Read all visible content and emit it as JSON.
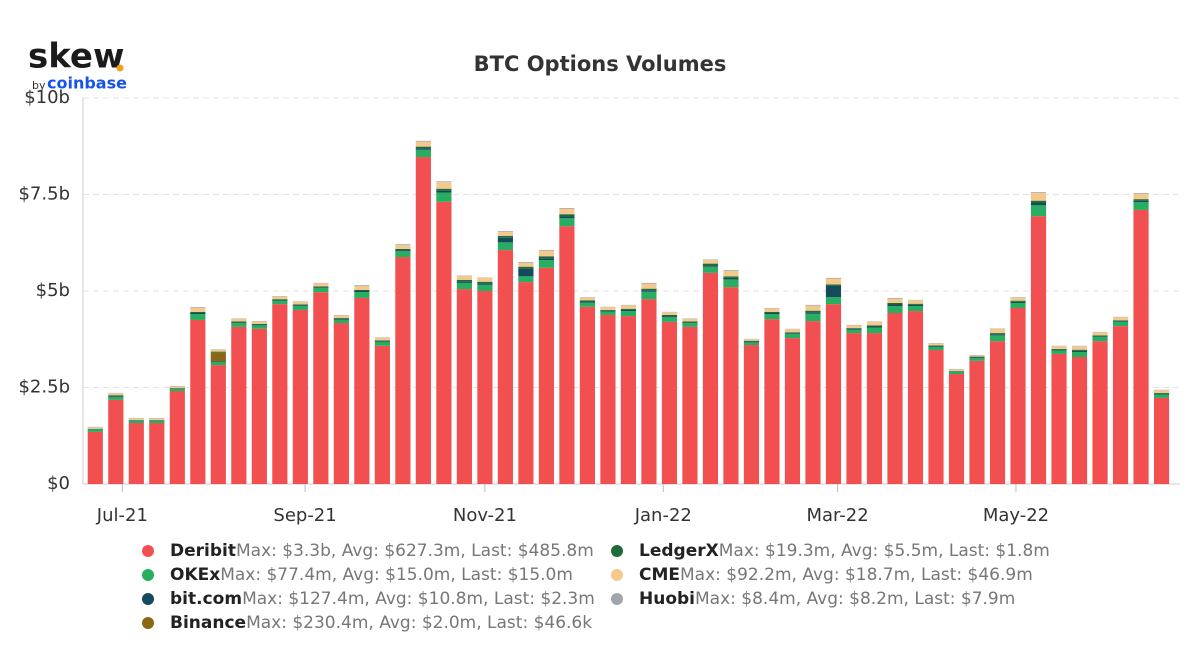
{
  "logo": {
    "name": "skew",
    "by": "by",
    "brand": "coinbase"
  },
  "chart_data": {
    "type": "stacked_bar",
    "title": "BTC Options Volumes",
    "x": [
      0,
      1,
      2,
      3,
      4,
      5,
      6,
      7,
      8,
      9,
      10,
      11,
      12,
      13,
      14,
      15,
      16,
      17,
      18,
      19,
      20,
      21,
      22,
      23,
      24,
      25,
      26,
      27,
      28,
      29,
      30,
      31,
      32,
      33,
      34,
      35,
      36,
      37,
      38,
      39,
      40,
      41,
      42,
      43,
      44,
      45,
      46,
      47,
      48,
      49,
      50,
      51,
      52
    ],
    "xlim": [
      -0.6,
      52.9
    ],
    "xticks": [
      {
        "value": 1.32,
        "label": "Jul-21"
      },
      {
        "value": 10.23,
        "label": "Sep-21"
      },
      {
        "value": 19.0,
        "label": "Nov-21"
      },
      {
        "value": 27.7,
        "label": "Jan-22"
      },
      {
        "value": 36.2,
        "label": "Mar-22"
      },
      {
        "value": 44.9,
        "label": "May-22"
      }
    ],
    "ylim": [
      0,
      10
    ],
    "yticks": [
      {
        "value": 0,
        "label": "$0"
      },
      {
        "value": 2.5,
        "label": "$2.5b"
      },
      {
        "value": 5,
        "label": "$5b"
      },
      {
        "value": 7.5,
        "label": "$7.5b"
      },
      {
        "value": 10,
        "label": "$10b"
      }
    ],
    "grid": true,
    "series": [
      {
        "name": "Deribit",
        "summary": "Max: $3.3b, Avg: $627.3m, Last: $485.8m",
        "color": "#f25050",
        "values": [
          1.35,
          2.18,
          1.58,
          1.58,
          2.41,
          4.25,
          3.08,
          4.07,
          4.02,
          4.66,
          4.51,
          4.97,
          4.17,
          4.82,
          3.58,
          5.88,
          8.47,
          7.31,
          5.05,
          5.0,
          6.06,
          5.23,
          5.6,
          6.68,
          4.59,
          4.38,
          4.35,
          4.79,
          4.2,
          4.07,
          5.47,
          5.1,
          3.6,
          4.27,
          3.78,
          4.22,
          4.66,
          3.91,
          3.91,
          4.43,
          4.48,
          3.47,
          2.85,
          3.19,
          3.7,
          4.56,
          6.94,
          3.37,
          3.29,
          3.7,
          4.09,
          7.1,
          2.23
        ]
      },
      {
        "name": "OKEx",
        "summary": "Max: $77.4m, Avg: $15.0m, Last: $15.0m",
        "color": "#27ae60",
        "values": [
          0.06,
          0.08,
          0.06,
          0.06,
          0.06,
          0.15,
          0.08,
          0.1,
          0.09,
          0.09,
          0.1,
          0.11,
          0.09,
          0.15,
          0.1,
          0.15,
          0.19,
          0.24,
          0.16,
          0.16,
          0.2,
          0.15,
          0.2,
          0.21,
          0.11,
          0.09,
          0.13,
          0.19,
          0.12,
          0.1,
          0.16,
          0.2,
          0.07,
          0.13,
          0.11,
          0.19,
          0.18,
          0.09,
          0.14,
          0.18,
          0.13,
          0.08,
          0.06,
          0.07,
          0.15,
          0.13,
          0.28,
          0.09,
          0.13,
          0.11,
          0.11,
          0.2,
          0.09
        ]
      },
      {
        "name": "bit.com",
        "summary": "Max: $127.4m, Avg: $10.8m, Last: $2.3m",
        "color": "#134a5c",
        "values": [
          0.01,
          0.02,
          0.01,
          0.01,
          0.01,
          0.03,
          0.02,
          0.02,
          0.02,
          0.02,
          0.02,
          0.02,
          0.02,
          0.03,
          0.02,
          0.03,
          0.04,
          0.05,
          0.04,
          0.04,
          0.12,
          0.2,
          0.05,
          0.05,
          0.03,
          0.02,
          0.03,
          0.04,
          0.03,
          0.02,
          0.04,
          0.04,
          0.02,
          0.03,
          0.02,
          0.04,
          0.3,
          0.02,
          0.03,
          0.04,
          0.03,
          0.02,
          0.01,
          0.02,
          0.03,
          0.03,
          0.06,
          0.02,
          0.03,
          0.02,
          0.02,
          0.04,
          0.02
        ]
      },
      {
        "name": "Binance",
        "summary": "Max: $230.4m, Avg: $2.0m, Last: $46.6k",
        "color": "#8b6914",
        "values": [
          0,
          0,
          0,
          0,
          0,
          0,
          0.23,
          0,
          0,
          0,
          0,
          0,
          0,
          0,
          0,
          0,
          0,
          0,
          0,
          0,
          0,
          0,
          0,
          0,
          0,
          0,
          0,
          0,
          0,
          0,
          0,
          0,
          0,
          0,
          0,
          0,
          0,
          0,
          0,
          0,
          0,
          0,
          0,
          0,
          0,
          0,
          0,
          0,
          0,
          0,
          0,
          0,
          0
        ]
      },
      {
        "name": "LedgerX",
        "summary": "Max: $19.3m, Avg: $5.5m, Last: $1.8m",
        "color": "#1d6b3a",
        "values": [
          0.01,
          0.02,
          0.01,
          0.01,
          0.01,
          0.03,
          0.02,
          0.02,
          0.02,
          0.02,
          0.02,
          0.02,
          0.02,
          0.03,
          0.02,
          0.03,
          0.04,
          0.05,
          0.04,
          0.04,
          0.05,
          0.05,
          0.05,
          0.05,
          0.03,
          0.02,
          0.03,
          0.04,
          0.03,
          0.02,
          0.04,
          0.04,
          0.02,
          0.03,
          0.02,
          0.04,
          0.03,
          0.02,
          0.03,
          0.04,
          0.03,
          0.02,
          0.01,
          0.02,
          0.03,
          0.03,
          0.06,
          0.02,
          0.03,
          0.02,
          0.02,
          0.04,
          0.02
        ]
      },
      {
        "name": "CME",
        "summary": "Max: $92.2m, Avg: $18.7m, Last: $46.9m",
        "color": "#f5c98a",
        "values": [
          0.04,
          0.05,
          0.04,
          0.04,
          0.04,
          0.1,
          0.05,
          0.07,
          0.06,
          0.07,
          0.07,
          0.08,
          0.07,
          0.1,
          0.07,
          0.1,
          0.13,
          0.17,
          0.1,
          0.1,
          0.1,
          0.1,
          0.14,
          0.14,
          0.07,
          0.07,
          0.09,
          0.13,
          0.07,
          0.07,
          0.1,
          0.14,
          0.04,
          0.09,
          0.08,
          0.13,
          0.15,
          0.07,
          0.09,
          0.11,
          0.09,
          0.05,
          0.04,
          0.03,
          0.11,
          0.08,
          0.2,
          0.07,
          0.09,
          0.08,
          0.08,
          0.14,
          0.07
        ]
      },
      {
        "name": "Huobi",
        "summary": "Max: $8.4m, Avg: $8.2m, Last: $7.9m",
        "color": "#a0a5ab",
        "values": [
          0.01,
          0.01,
          0.01,
          0.01,
          0.01,
          0.02,
          0.01,
          0.01,
          0.01,
          0.01,
          0.01,
          0.01,
          0.01,
          0.02,
          0.01,
          0.02,
          0.02,
          0.02,
          0.01,
          0.01,
          0.02,
          0.02,
          0.02,
          0.02,
          0.01,
          0.01,
          0.01,
          0.02,
          0.01,
          0.01,
          0.01,
          0.02,
          0.01,
          0.01,
          0.01,
          0.02,
          0.02,
          0.01,
          0.01,
          0.02,
          0.01,
          0.01,
          0.01,
          0.01,
          0.01,
          0.01,
          0.02,
          0.01,
          0.01,
          0.01,
          0.01,
          0.02,
          0.01
        ]
      }
    ]
  }
}
